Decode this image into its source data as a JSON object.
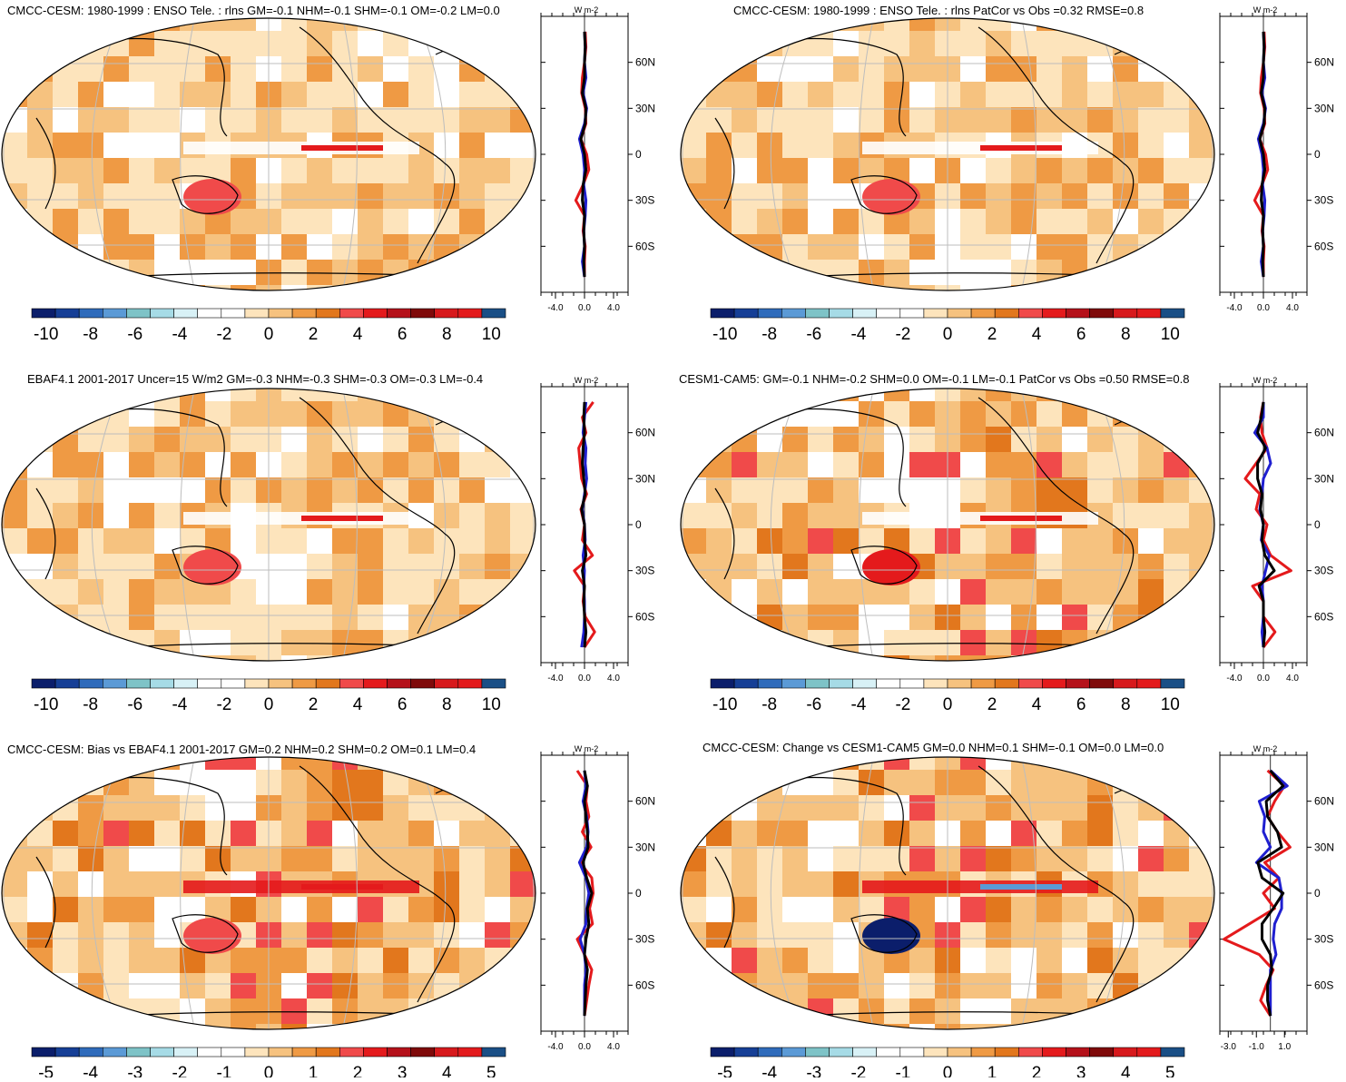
{
  "palette": [
    "#0b1e6b",
    "#163f96",
    "#2f6bbb",
    "#5b9ad6",
    "#7ec3c7",
    "#a6dbe6",
    "#d8f1f6",
    "#ffffff",
    "#ffffff",
    "#fde4bc",
    "#f6c27f",
    "#ef9a44",
    "#e2771d",
    "#f04a4a",
    "#e41a1c",
    "#b5111a",
    "#7f0a0a",
    "#d7191c",
    "#e31a1c",
    "#1a4f86"
  ],
  "line_colors": {
    "red": "#e41a1c",
    "blue": "#1f1fd0",
    "black": "#000000"
  },
  "chart_data": [
    {
      "type": "heatmap",
      "title": "CMCC-CESM: 1980-1999 : ENSO Tele. : rlns GM=-0.1 NHM=-0.1 SHM=-0.1 OM=-0.2 LM=0.0",
      "colorbar_ticks": [
        "-10",
        "-8",
        "-6",
        "-4",
        "-2",
        "0",
        "2",
        "4",
        "6",
        "8",
        "10"
      ],
      "zonal": {
        "units": "W m-2",
        "xticks": [
          "-4.0",
          "0.0",
          "4.0"
        ],
        "xlim": [
          -6,
          6
        ],
        "lat_ticks": [
          "60N",
          "30N",
          "0",
          "30S",
          "60S"
        ],
        "lat": [
          80,
          70,
          60,
          50,
          40,
          30,
          20,
          10,
          0,
          -10,
          -20,
          -30,
          -40,
          -50,
          -60,
          -70,
          -80
        ],
        "red": [
          0.1,
          0.2,
          0.0,
          -0.3,
          -0.4,
          0.1,
          0.2,
          -0.5,
          0.3,
          0.6,
          -0.2,
          -1.2,
          0.0,
          -0.2,
          0.1,
          0.0,
          0.0
        ],
        "blue": [
          0.0,
          0.1,
          0.0,
          0.2,
          -0.2,
          0.3,
          0.0,
          -0.7,
          -0.2,
          0.0,
          -0.1,
          0.2,
          0.1,
          -0.1,
          0.0,
          -0.3,
          0.0
        ],
        "black": [
          0.0,
          0.1,
          0.0,
          0.0,
          -0.3,
          0.2,
          0.1,
          -0.5,
          0.0,
          0.2,
          -0.2,
          -0.3,
          0.0,
          -0.1,
          0.0,
          -0.1,
          0.0
        ]
      }
    },
    {
      "type": "heatmap",
      "title": "CMCC-CESM: 1980-1999 : ENSO Tele. : rlns PatCor vs Obs =0.32 RMSE=0.8",
      "colorbar_ticks": [
        "-10",
        "-8",
        "-6",
        "-4",
        "-2",
        "0",
        "2",
        "4",
        "6",
        "8",
        "10"
      ],
      "zonal": {
        "units": "W m-2",
        "xticks": [
          "-4.0",
          "0.0",
          "4.0"
        ],
        "xlim": [
          -6,
          6
        ],
        "lat_ticks": [
          "60N",
          "30N",
          "0",
          "30S",
          "60S"
        ],
        "lat": [
          80,
          70,
          60,
          50,
          40,
          30,
          20,
          10,
          0,
          -10,
          -20,
          -30,
          -40,
          -50,
          -60,
          -70,
          -80
        ],
        "red": [
          0.1,
          0.2,
          0.0,
          -0.3,
          -0.4,
          0.1,
          0.2,
          -0.5,
          0.3,
          0.6,
          -0.2,
          -1.2,
          0.0,
          -0.2,
          0.1,
          0.0,
          0.0
        ],
        "blue": [
          0.0,
          0.1,
          0.0,
          0.2,
          -0.2,
          0.3,
          0.0,
          -0.7,
          -0.2,
          0.0,
          -0.1,
          0.2,
          0.1,
          -0.1,
          0.0,
          -0.3,
          0.0
        ],
        "black": [
          0.0,
          0.1,
          0.0,
          0.0,
          -0.3,
          0.2,
          0.1,
          -0.5,
          0.0,
          0.2,
          -0.2,
          -0.3,
          0.0,
          -0.1,
          0.0,
          -0.1,
          0.0
        ]
      }
    },
    {
      "type": "heatmap",
      "title": "EBAF4.1 2001-2017 Uncer=15 W/m2 GM=-0.3 NHM=-0.3 SHM=-0.3 OM=-0.3 LM=-0.4",
      "colorbar_ticks": [
        "-10",
        "-8",
        "-6",
        "-4",
        "-2",
        "0",
        "2",
        "4",
        "6",
        "8",
        "10"
      ],
      "zonal": {
        "units": "W m-2",
        "xticks": [
          "-4.0",
          "0.0",
          "4.0"
        ],
        "xlim": [
          -6,
          6
        ],
        "lat_ticks": [
          "60N",
          "30N",
          "0",
          "30S",
          "60S"
        ],
        "lat": [
          80,
          70,
          60,
          50,
          40,
          30,
          20,
          10,
          0,
          -10,
          -20,
          -30,
          -40,
          -50,
          -60,
          -70,
          -80
        ],
        "red": [
          1.2,
          -0.3,
          0.2,
          -0.8,
          -0.6,
          -0.4,
          0.3,
          -0.5,
          0.0,
          -0.3,
          1.1,
          -1.4,
          0.0,
          -0.2,
          0.1,
          1.4,
          0.0
        ],
        "blue": [
          0.2,
          0.0,
          -0.2,
          0.2,
          0.1,
          0.3,
          0.0,
          -0.3,
          0.0,
          0.1,
          -0.2,
          0.0,
          -0.1,
          0.0,
          0.0,
          -0.1,
          -0.4
        ],
        "black": [
          0.0,
          -0.1,
          0.0,
          -0.2,
          -0.3,
          -0.1,
          0.1,
          -0.4,
          0.0,
          0.0,
          0.2,
          -0.3,
          0.0,
          -0.1,
          0.0,
          0.2,
          0.0
        ]
      }
    },
    {
      "type": "heatmap",
      "title": "CESM1-CAM5: GM=-0.1 NHM=-0.2 SHM=0.0 OM=-0.1 LM=-0.1 PatCor vs Obs =0.50 RMSE=0.8",
      "colorbar_ticks": [
        "-10",
        "-8",
        "-6",
        "-4",
        "-2",
        "0",
        "2",
        "4",
        "6",
        "8",
        "10"
      ],
      "zonal": {
        "units": "W m-2",
        "xticks": [
          "-4.0",
          "0.0",
          "4.0"
        ],
        "xlim": [
          -6,
          6
        ],
        "lat_ticks": [
          "60N",
          "30N",
          "0",
          "30S",
          "60S"
        ],
        "lat": [
          80,
          70,
          60,
          50,
          40,
          30,
          20,
          10,
          0,
          -10,
          -20,
          -30,
          -40,
          -50,
          -60,
          -70,
          -80
        ],
        "red": [
          0.0,
          -0.4,
          -0.2,
          0.5,
          -1.0,
          -2.5,
          -0.5,
          -1.0,
          0.5,
          0.0,
          1.0,
          3.8,
          -1.5,
          0.0,
          0.0,
          1.6,
          0.0
        ],
        "blue": [
          0.0,
          0.0,
          -1.2,
          0.5,
          1.0,
          0.0,
          -0.2,
          -0.5,
          0.0,
          -0.3,
          0.8,
          0.3,
          -0.2,
          0.0,
          0.0,
          -0.2,
          0.0
        ],
        "black": [
          0.0,
          -0.3,
          -0.8,
          0.3,
          -0.8,
          -0.8,
          -0.2,
          -0.4,
          0.0,
          -0.2,
          0.2,
          1.5,
          -0.6,
          0.0,
          0.0,
          0.2,
          0.0
        ]
      }
    },
    {
      "type": "heatmap",
      "title": "CMCC-CESM: Bias vs EBAF4.1 2001-2017 GM=0.2 NHM=0.2 SHM=0.2 OM=0.1 LM=0.4",
      "colorbar_ticks": [
        "-5",
        "-4",
        "-3",
        "-2",
        "-1",
        "0",
        "1",
        "2",
        "3",
        "4",
        "5"
      ],
      "zonal": {
        "units": "W m-2",
        "xticks": [
          "-4.0",
          "0.0",
          "4.0"
        ],
        "xlim": [
          -6,
          6
        ],
        "lat_ticks": [
          "60N",
          "30N",
          "0",
          "30S",
          "60S"
        ],
        "lat": [
          80,
          70,
          60,
          50,
          40,
          30,
          20,
          10,
          0,
          -10,
          -20,
          -30,
          -40,
          -50,
          -60,
          -70,
          -80
        ],
        "red": [
          -1.0,
          0.4,
          0.2,
          0.6,
          -0.3,
          0.9,
          -0.6,
          1.0,
          1.2,
          0.7,
          1.1,
          -1.0,
          0.0,
          1.0,
          0.6,
          0.3,
          0.0
        ],
        "blue": [
          0.0,
          0.2,
          -0.2,
          0.3,
          0.5,
          0.3,
          -0.7,
          0.2,
          0.6,
          0.3,
          0.2,
          -0.6,
          0.0,
          0.2,
          0.0,
          0.0,
          0.0
        ],
        "black": [
          0.0,
          0.4,
          0.0,
          0.2,
          0.4,
          0.5,
          -0.2,
          0.3,
          1.0,
          0.4,
          0.6,
          0.2,
          0.0,
          0.4,
          0.2,
          0.1,
          0.0
        ]
      }
    },
    {
      "type": "heatmap",
      "title": "CMCC-CESM: Change vs CESM1-CAM5 GM=0.0 NHM=0.1 SHM=-0.1 OM=0.0 LM=0.0",
      "colorbar_ticks": [
        "-5",
        "-4",
        "-3",
        "-2",
        "-1",
        "0",
        "1",
        "2",
        "3",
        "4",
        "5"
      ],
      "zonal": {
        "units": "W m-2",
        "xticks": [
          "-3.0",
          "-1.0",
          "1.0"
        ],
        "xlim": [
          -3.6,
          2.6
        ],
        "lat_ticks": [
          "60N",
          "30N",
          "0",
          "30S",
          "60S"
        ],
        "lat": [
          80,
          70,
          60,
          50,
          40,
          30,
          20,
          10,
          0,
          -10,
          -20,
          -30,
          -40,
          -50,
          -60,
          -70,
          -80
        ],
        "red": [
          -0.2,
          1.0,
          0.3,
          -0.2,
          0.5,
          1.4,
          -0.4,
          0.6,
          -0.5,
          0.3,
          -1.5,
          -3.3,
          -0.8,
          0.2,
          -0.3,
          -0.7,
          0.0
        ],
        "blue": [
          0.0,
          1.2,
          -0.8,
          -0.4,
          -0.5,
          0.0,
          -1.0,
          0.6,
          0.8,
          0.8,
          0.3,
          0.2,
          0.4,
          0.0,
          0.0,
          0.0,
          0.0
        ],
        "black": [
          0.0,
          0.9,
          -0.3,
          -0.2,
          0.5,
          0.8,
          -0.9,
          -0.6,
          0.9,
          0.2,
          -0.6,
          -0.6,
          0.0,
          0.1,
          -0.2,
          -0.2,
          0.0
        ]
      }
    }
  ]
}
